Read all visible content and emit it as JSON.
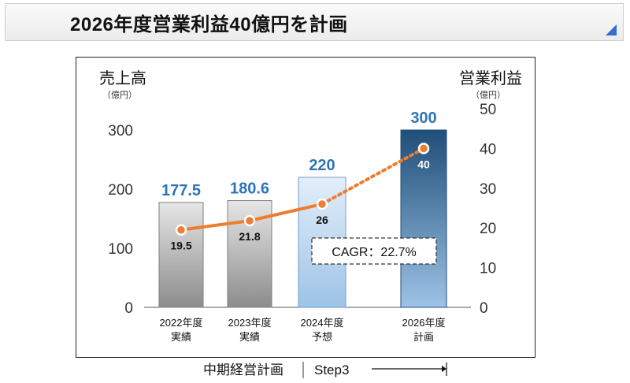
{
  "header": {
    "title": "2026年度営業利益40億円を計画"
  },
  "chart_data": {
    "type": "bar+line",
    "left_axis": {
      "label": "売上高",
      "unit": "（億円）",
      "ylim": [
        0,
        300
      ],
      "ticks": [
        "0",
        "100",
        "200",
        "300"
      ]
    },
    "right_axis": {
      "label": "営業利益",
      "unit": "（億円）",
      "ylim": [
        0,
        50
      ],
      "ticks": [
        "0",
        "10",
        "20",
        "30",
        "40",
        "50"
      ]
    },
    "categories": [
      {
        "year": "2022年度",
        "status": "実績"
      },
      {
        "year": "2023年度",
        "status": "実績"
      },
      {
        "year": "2024年度",
        "status": "予想"
      },
      {
        "year": "2026年度",
        "status": "計画"
      }
    ],
    "bars": {
      "values": [
        177.5,
        180.6,
        220,
        300
      ],
      "labels": [
        "177.5",
        "180.6",
        "220",
        "300"
      ]
    },
    "line": {
      "values": [
        19.5,
        21.8,
        26,
        40
      ],
      "labels": [
        "19.5",
        "21.8",
        "26",
        "40"
      ],
      "color": "#ed7d31"
    },
    "annotation": "CAGR：22.7%",
    "colors": {
      "actual_bar": "#a6a6a6",
      "forecast_bar": "#bdd7ee",
      "plan_bar": "#1f4e79",
      "value_label": "#2e75b6"
    }
  },
  "footer": {
    "plan_label": "中期経営計画",
    "step_label": "Step3"
  }
}
